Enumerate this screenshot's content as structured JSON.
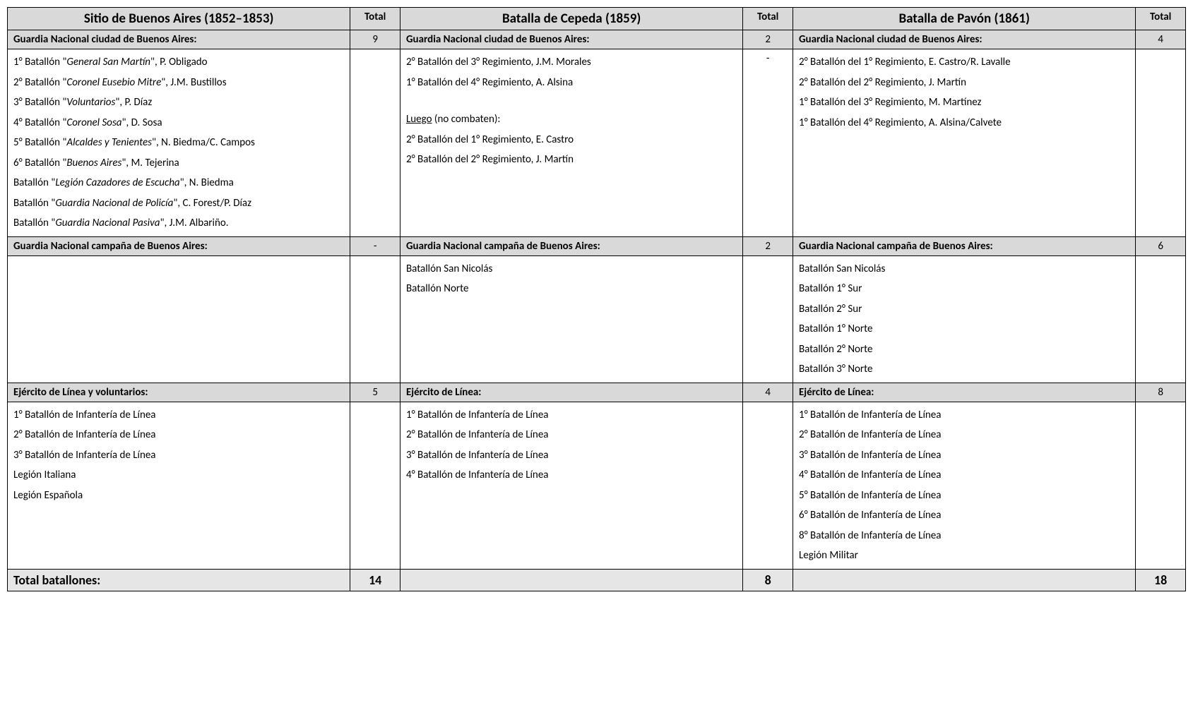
{
  "type": "table",
  "background_color": "#ffffff",
  "header_bg": "#d9d9d9",
  "footer_bg": "#e6e6e6",
  "border_color": "#000000",
  "font_family": "Calibri",
  "title_fontsize": 19,
  "body_fontsize": 15,
  "columns": [
    {
      "title": "Sitio de Buenos Aires (1852–1853)",
      "total_label": "Total",
      "width_pct": 27.5,
      "total_width_pct": 4
    },
    {
      "title": "Batalla de Cepeda (1859)",
      "total_label": "Total",
      "width_pct": 27.5,
      "total_width_pct": 4
    },
    {
      "title": "Batalla de Pavón (1861)",
      "total_label": "Total",
      "width_pct": 27.5,
      "total_width_pct": 4
    }
  ],
  "sections": [
    {
      "col0": {
        "label": "Guardia Nacional ciudad de Buenos Aires:",
        "total": "9",
        "items_total": "",
        "items": [
          [
            {
              "t": "1° Batallón \""
            },
            {
              "t": "General San Martín",
              "i": true
            },
            {
              "t": "\", P. Obligado"
            }
          ],
          [
            {
              "t": "2° Batallón \""
            },
            {
              "t": "Coronel Eusebio Mitre",
              "i": true
            },
            {
              "t": "\", J.M. Bustillos"
            }
          ],
          [
            {
              "t": "3° Batallón \""
            },
            {
              "t": "Voluntarios",
              "i": true
            },
            {
              "t": "\", P. Díaz"
            }
          ],
          [
            {
              "t": "4° Batallón \""
            },
            {
              "t": "Coronel Sosa",
              "i": true
            },
            {
              "t": "\", D. Sosa"
            }
          ],
          [
            {
              "t": "5° Batallón \""
            },
            {
              "t": "Alcaldes y Tenientes",
              "i": true
            },
            {
              "t": "\", N. Biedma/C. Campos"
            }
          ],
          [
            {
              "t": "6° Batallón \""
            },
            {
              "t": "Buenos Aires",
              "i": true
            },
            {
              "t": "\", M. Tejerina"
            }
          ],
          [
            {
              "t": "Batallón \""
            },
            {
              "t": "Legión Cazadores de Escucha",
              "i": true
            },
            {
              "t": "\", N. Biedma"
            }
          ],
          [
            {
              "t": "Batallón \""
            },
            {
              "t": "Guardia Nacional de Policía",
              "i": true
            },
            {
              "t": "\", C. Forest/P. Díaz"
            }
          ],
          [
            {
              "t": "Batallón \""
            },
            {
              "t": "Guardia Nacional Pasiva",
              "i": true
            },
            {
              "t": "\", J.M. Albariño."
            }
          ]
        ]
      },
      "col1": {
        "label": "Guardia Nacional ciudad de Buenos Aires:",
        "total": "2",
        "items_total": "-",
        "items": [
          [
            {
              "t": "2° Batallón del 3° Regimiento, J.M. Morales"
            }
          ],
          [
            {
              "t": "1° Batallón del 4° Regimiento, A. Alsina"
            }
          ],
          [
            {
              "gap": true
            }
          ],
          [
            {
              "t": "Luego",
              "u": true
            },
            {
              "t": " (no combaten):"
            }
          ],
          [
            {
              "t": "2° Batallón del 1° Regimiento, E. Castro"
            }
          ],
          [
            {
              "t": "2° Batallón del 2° Regimiento, J. Martín"
            }
          ]
        ]
      },
      "col2": {
        "label": "Guardia Nacional ciudad de Buenos Aires:",
        "total": "4",
        "items_total": "",
        "items": [
          [
            {
              "t": "2° Batallón del 1° Regimiento, E. Castro/R. Lavalle"
            }
          ],
          [
            {
              "t": "2° Batallón del 2° Regimiento, J. Martín"
            }
          ],
          [
            {
              "t": "1° Batallón del 3° Regimiento, M. Martínez"
            }
          ],
          [
            {
              "t": "1° Batallón del 4° Regimiento, A. Alsina/Calvete"
            }
          ]
        ]
      }
    },
    {
      "col0": {
        "label": "Guardia Nacional campaña de Buenos Aires:",
        "total": "-",
        "items_total": "",
        "items": []
      },
      "col1": {
        "label": "Guardia Nacional campaña de Buenos Aires:",
        "total": "2",
        "items_total": "",
        "items": [
          [
            {
              "t": "Batallón San Nicolás"
            }
          ],
          [
            {
              "t": "Batallón Norte"
            }
          ]
        ]
      },
      "col2": {
        "label": "Guardia Nacional campaña de Buenos Aires:",
        "total": "6",
        "items_total": "",
        "items": [
          [
            {
              "t": "Batallón San Nicolás"
            }
          ],
          [
            {
              "t": "Batallón 1° Sur"
            }
          ],
          [
            {
              "t": "Batallón 2° Sur"
            }
          ],
          [
            {
              "t": "Batallón 1° Norte"
            }
          ],
          [
            {
              "t": "Batallón 2° Norte"
            }
          ],
          [
            {
              "t": "Batallón 3° Norte"
            }
          ]
        ]
      }
    },
    {
      "col0": {
        "label": "Ejército de Línea y voluntarios:",
        "total": "5",
        "items_total": "",
        "items": [
          [
            {
              "t": "1° Batallón de Infantería de Línea"
            }
          ],
          [
            {
              "t": "2° Batallón de Infantería de Línea"
            }
          ],
          [
            {
              "t": "3° Batallón de Infantería de Línea"
            }
          ],
          [
            {
              "t": "Legión Italiana"
            }
          ],
          [
            {
              "t": "Legión Española"
            }
          ]
        ]
      },
      "col1": {
        "label": "Ejército de Línea:",
        "total": "4",
        "items_total": "",
        "items": [
          [
            {
              "t": "1° Batallón de Infantería de Línea"
            }
          ],
          [
            {
              "t": "2° Batallón de Infantería de Línea"
            }
          ],
          [
            {
              "t": "3° Batallón de Infantería de Línea"
            }
          ],
          [
            {
              "t": "4° Batallón de Infantería de Línea"
            }
          ]
        ]
      },
      "col2": {
        "label": "Ejército de Línea:",
        "total": "8",
        "items_total": "",
        "items": [
          [
            {
              "t": "1° Batallón de Infantería de Línea"
            }
          ],
          [
            {
              "t": "2° Batallón de Infantería de Línea"
            }
          ],
          [
            {
              "t": "3° Batallón de Infantería de Línea"
            }
          ],
          [
            {
              "t": "4° Batallón de Infantería de Línea"
            }
          ],
          [
            {
              "t": "5° Batallón de Infantería de Línea"
            }
          ],
          [
            {
              "t": "6° Batallón de Infantería de Línea"
            }
          ],
          [
            {
              "t": "8° Batallón de Infantería de Línea"
            }
          ],
          [
            {
              "t": "Legión Militar"
            }
          ]
        ]
      }
    }
  ],
  "footer": {
    "label": "Total batallones:",
    "totals": [
      "14",
      "8",
      "18"
    ],
    "empty": ""
  }
}
